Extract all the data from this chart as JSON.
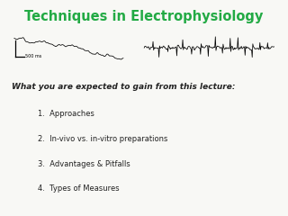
{
  "title": "Techniques in Electrophysiology",
  "title_color": "#22aa44",
  "title_fontsize": 10.5,
  "subtitle": "What you are expected to gain from this lecture:",
  "subtitle_fontsize": 6.5,
  "items": [
    "1.  Approaches",
    "2.  In-vivo vs. in-vitro preparations",
    "3.  Advantages & Pitfalls",
    "4.  Types of Measures"
  ],
  "item_fontsize": 6.0,
  "background_color": "#f8f8f5",
  "text_color": "#222222",
  "scalebar_label": "500 ms"
}
